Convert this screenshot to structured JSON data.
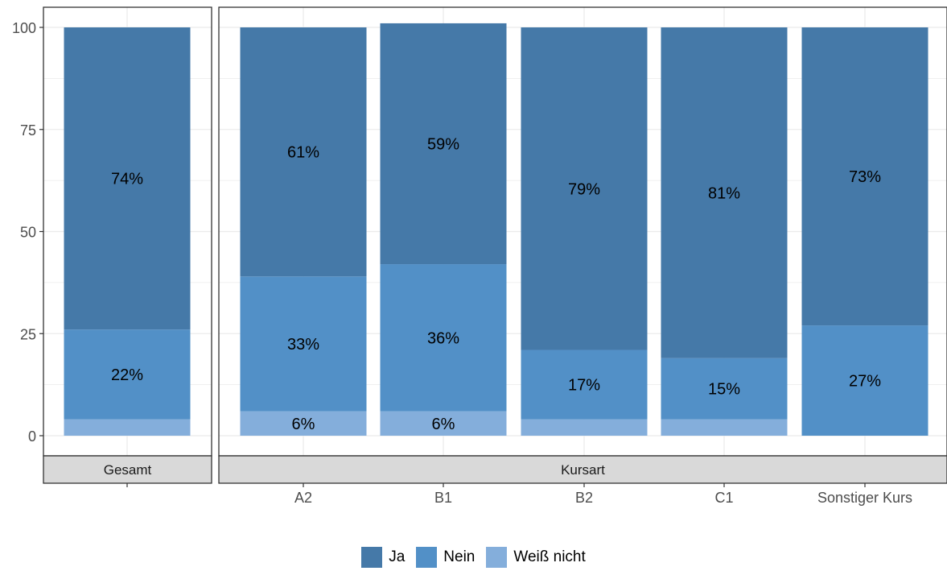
{
  "chart_data": {
    "type": "bar",
    "stacked": true,
    "ylim": [
      0,
      100
    ],
    "yticks": [
      0,
      25,
      50,
      75,
      100
    ],
    "grid": true,
    "legend_position": "bottom",
    "panels": [
      {
        "strip": "Gesamt",
        "categories": [
          ""
        ],
        "series": [
          {
            "name": "Weiß nicht",
            "values": [
              4
            ],
            "labels": [
              ""
            ]
          },
          {
            "name": "Nein",
            "values": [
              22
            ],
            "labels": [
              "22%"
            ]
          },
          {
            "name": "Ja",
            "values": [
              74
            ],
            "labels": [
              "74%"
            ]
          }
        ]
      },
      {
        "strip": "Kursart",
        "categories": [
          "A2",
          "B1",
          "B2",
          "C1",
          "Sonstiger Kurs"
        ],
        "series": [
          {
            "name": "Weiß nicht",
            "values": [
              6,
              6,
              4,
              4,
              0
            ],
            "labels": [
              "6%",
              "6%",
              "",
              "",
              ""
            ]
          },
          {
            "name": "Nein",
            "values": [
              33,
              36,
              17,
              15,
              27
            ],
            "labels": [
              "33%",
              "36%",
              "17%",
              "15%",
              "27%"
            ]
          },
          {
            "name": "Ja",
            "values": [
              61,
              59,
              79,
              81,
              73
            ],
            "labels": [
              "61%",
              "59%",
              "79%",
              "81%",
              "73%"
            ]
          }
        ]
      }
    ]
  },
  "legend": [
    {
      "label": "Ja",
      "color": "#4579A8"
    },
    {
      "label": "Nein",
      "color": "#5290C7"
    },
    {
      "label": "Weiß nicht",
      "color": "#84AEDB"
    }
  ],
  "colors": {
    "Ja": "#4579A8",
    "Nein": "#5290C7",
    "Weiß nicht": "#84AEDB",
    "strip_background": "#D9D9D9",
    "grid": "#EBEBEB"
  }
}
